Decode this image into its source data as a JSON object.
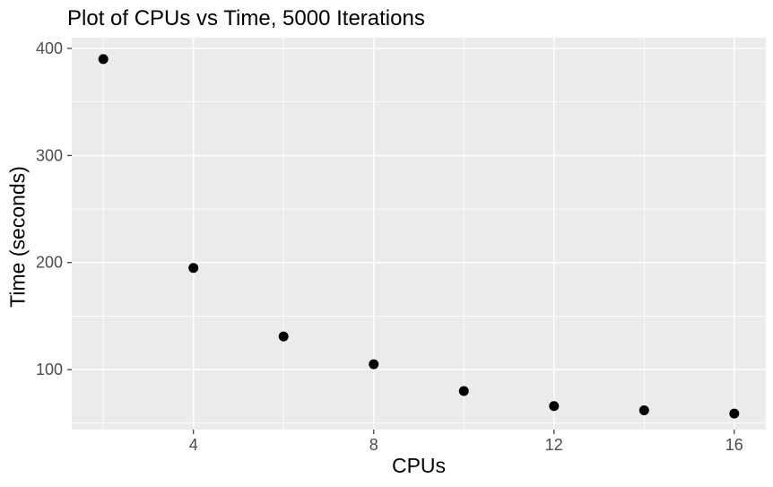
{
  "chart_data": {
    "type": "scatter",
    "title": "Plot of CPUs vs Time, 5000 Iterations",
    "xlabel": "CPUs",
    "ylabel": "Time (seconds)",
    "x": [
      2,
      4,
      6,
      8,
      10,
      12,
      14,
      16
    ],
    "y": [
      390,
      195,
      131,
      105,
      80,
      66,
      62,
      59
    ],
    "xlim": [
      1.3,
      16.7
    ],
    "ylim": [
      44,
      410
    ],
    "x_ticks": [
      4,
      8,
      12,
      16
    ],
    "y_ticks": [
      100,
      200,
      300,
      400
    ],
    "x_minor_gridlines": [
      2,
      6,
      10,
      14
    ],
    "y_minor_gridlines": [
      50,
      150,
      250,
      350
    ],
    "grid": true,
    "legend": false,
    "style": {
      "page_background": "#FFFFFF",
      "panel_background": "#EBEBEB",
      "gridline_color": "#FFFFFF",
      "point_color": "#000000",
      "tick_mark_color": "#333333",
      "tick_label_color": "#4D4D4D",
      "title_color": "#000000",
      "axis_title_color": "#000000"
    }
  }
}
